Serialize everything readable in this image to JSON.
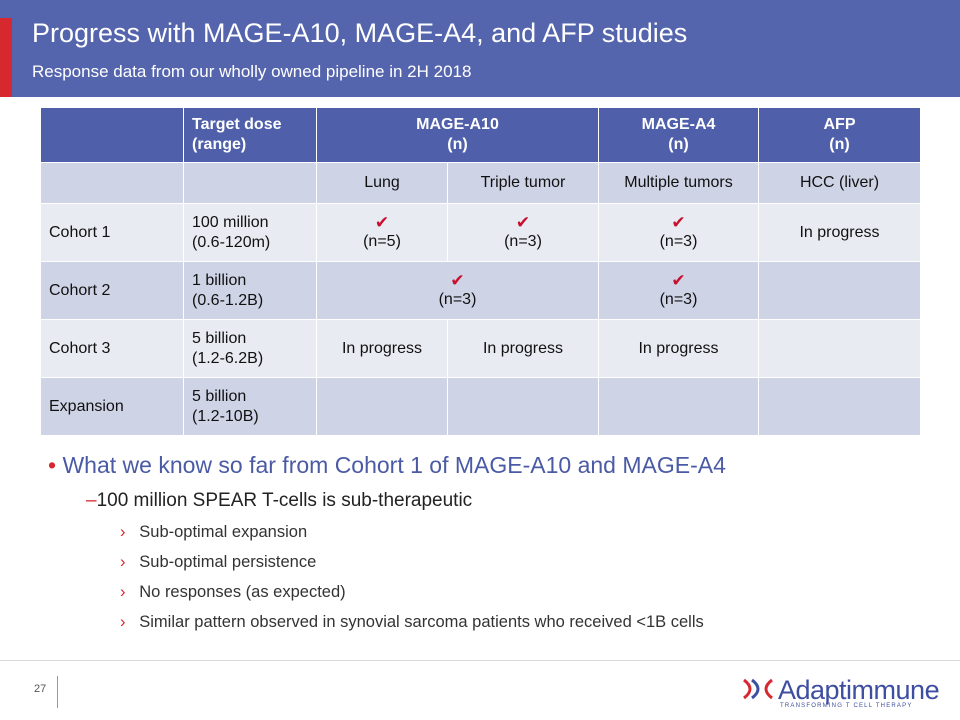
{
  "header": {
    "title": "Progress with MAGE-A10, MAGE-A4, and AFP studies",
    "subtitle": "Response data from our wholly owned pipeline in 2H 2018"
  },
  "table": {
    "header": [
      "Target dose\n(range)",
      "MAGE-A10\n(n)",
      "MAGE-A4\n(n)",
      "AFP\n(n)"
    ],
    "subheader": [
      "Lung",
      "Triple tumor",
      "Multiple tumors",
      "HCC (liver)"
    ],
    "rows": [
      {
        "label": "Cohort 1",
        "dose": "100 million\n(0.6-120m)",
        "cells": [
          "(n=5)",
          "(n=3)",
          "(n=3)",
          "In progress"
        ]
      },
      {
        "label": "Cohort 2",
        "dose": "1 billion\n(0.6-1.2B)",
        "cells": [
          "(n=3)",
          "(n=3)"
        ]
      },
      {
        "label": "Cohort 3",
        "dose": "5 billion\n(1.2-6.2B)",
        "cells": [
          "In progress",
          "In progress",
          "In progress"
        ]
      },
      {
        "label": "Expansion",
        "dose": "5 billion\n(1.2-10B)"
      }
    ]
  },
  "bullets": {
    "main": "What we know so far from Cohort 1 of MAGE-A10 and MAGE-A4",
    "sub": "100 million SPEAR T-cells is sub-therapeutic",
    "points": [
      "Sub-optimal  expansion",
      "Sub-optimal  persistence",
      "No responses (as expected)",
      "Similar pattern observed in synovial sarcoma patients who received <1B cells"
    ]
  },
  "footer": {
    "page": "27",
    "logo": "Adaptimmune",
    "tagline": "TRANSFORMING T CELL THERAPY"
  }
}
